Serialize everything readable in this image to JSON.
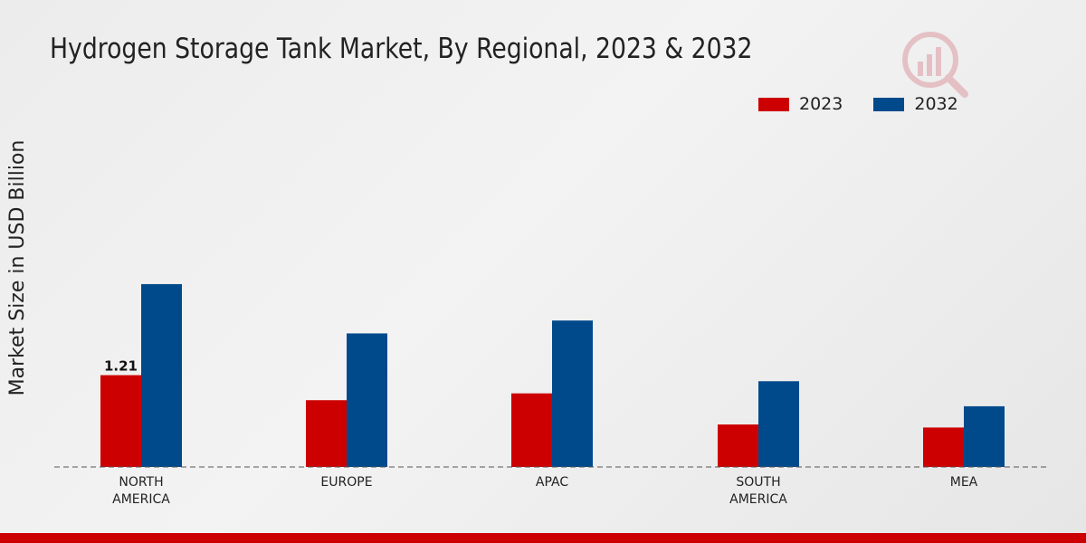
{
  "chart_data": {
    "type": "bar",
    "title": "Hydrogen Storage Tank Market, By Regional, 2023 & 2032",
    "xlabel": "",
    "ylabel": "Market Size in USD Billion",
    "categories": [
      [
        "NORTH",
        "AMERICA"
      ],
      [
        "EUROPE"
      ],
      [
        "APAC"
      ],
      [
        "SOUTH",
        "AMERICA"
      ],
      [
        "MEA"
      ]
    ],
    "series": [
      {
        "name": "2023",
        "color": "#cc0000",
        "values": [
          1.21,
          0.88,
          0.97,
          0.56,
          0.52
        ],
        "labels": [
          "1.21",
          "",
          "",
          "",
          ""
        ]
      },
      {
        "name": "2032",
        "color": "#004a8c",
        "values": [
          2.41,
          1.76,
          1.93,
          1.13,
          0.8
        ],
        "labels": [
          "",
          "",
          "",
          "",
          ""
        ]
      }
    ],
    "ylim": [
      0,
      5.2
    ],
    "grid": false,
    "legend_position": "top-right"
  },
  "footer_color": "#cc0000"
}
